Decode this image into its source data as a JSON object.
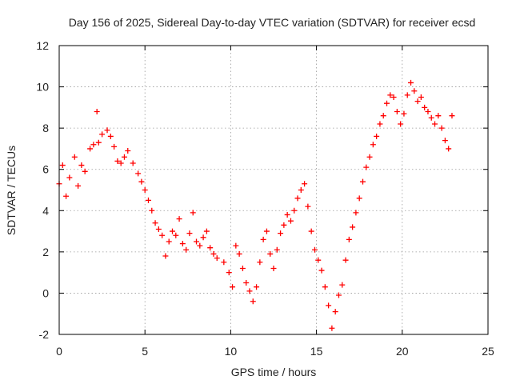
{
  "chart_data": {
    "type": "scatter",
    "title": "Day 156 of 2025, Sidereal Day-to-day VTEC variation (SDTVAR) for receiver ecsd",
    "xlabel": "GPS time / hours",
    "ylabel": "SDTVAR / TECUs",
    "xlim": [
      0,
      25
    ],
    "ylim": [
      -2,
      12
    ],
    "xticks": [
      0,
      5,
      10,
      15,
      20,
      25
    ],
    "yticks": [
      -2,
      0,
      2,
      4,
      6,
      8,
      10,
      12
    ],
    "grid": true,
    "marker": "plus",
    "color": "#ff0000",
    "series": [
      {
        "name": "SDTVAR",
        "x": [
          0.0,
          0.2,
          0.4,
          0.6,
          0.9,
          1.1,
          1.3,
          1.5,
          1.8,
          2.0,
          2.2,
          2.3,
          2.5,
          2.8,
          3.0,
          3.2,
          3.4,
          3.6,
          3.8,
          4.0,
          4.3,
          4.6,
          4.8,
          5.0,
          5.2,
          5.4,
          5.6,
          5.8,
          6.0,
          6.2,
          6.4,
          6.6,
          6.8,
          7.0,
          7.2,
          7.4,
          7.6,
          7.8,
          8.0,
          8.2,
          8.4,
          8.6,
          8.8,
          9.0,
          9.2,
          9.6,
          9.9,
          10.1,
          10.3,
          10.5,
          10.7,
          10.9,
          11.1,
          11.3,
          11.5,
          11.7,
          11.9,
          12.1,
          12.3,
          12.5,
          12.7,
          12.9,
          13.1,
          13.3,
          13.5,
          13.7,
          13.9,
          14.1,
          14.3,
          14.5,
          14.7,
          14.9,
          15.1,
          15.3,
          15.5,
          15.7,
          15.9,
          16.1,
          16.3,
          16.5,
          16.7,
          16.9,
          17.1,
          17.3,
          17.5,
          17.7,
          17.9,
          18.1,
          18.3,
          18.5,
          18.7,
          18.9,
          19.1,
          19.3,
          19.5,
          19.7,
          19.9,
          20.1,
          20.3,
          20.5,
          20.7,
          20.9,
          21.1,
          21.3,
          21.5,
          21.7,
          21.9,
          22.1,
          22.3,
          22.5,
          22.7,
          22.9
        ],
        "y": [
          5.3,
          6.2,
          4.7,
          5.6,
          6.6,
          5.2,
          6.2,
          5.9,
          7.0,
          7.2,
          8.8,
          7.3,
          7.7,
          7.9,
          7.6,
          7.1,
          6.4,
          6.3,
          6.6,
          6.9,
          6.3,
          5.8,
          5.4,
          5.0,
          4.5,
          4.0,
          3.4,
          3.1,
          2.8,
          1.8,
          2.5,
          3.0,
          2.8,
          3.6,
          2.4,
          2.1,
          2.9,
          3.9,
          2.5,
          2.3,
          2.7,
          3.0,
          2.2,
          1.9,
          1.7,
          1.5,
          1.0,
          0.3,
          2.3,
          1.9,
          1.2,
          0.5,
          0.1,
          -0.4,
          0.3,
          1.5,
          2.6,
          3.0,
          1.9,
          1.2,
          2.1,
          2.9,
          3.3,
          3.8,
          3.5,
          4.0,
          4.6,
          5.0,
          5.3,
          4.2,
          3.0,
          2.1,
          1.6,
          1.1,
          0.3,
          -0.6,
          -1.7,
          -0.9,
          -0.1,
          0.4,
          1.6,
          2.6,
          3.2,
          3.9,
          4.6,
          5.4,
          6.1,
          6.6,
          7.2,
          7.6,
          8.2,
          8.6,
          9.2,
          9.6,
          9.5,
          8.8,
          8.2,
          8.7,
          9.6,
          10.2,
          9.8,
          9.3,
          9.5,
          9.0,
          8.8,
          8.5,
          8.2,
          8.6,
          8.0,
          7.4,
          7.0,
          8.6
        ]
      }
    ]
  }
}
